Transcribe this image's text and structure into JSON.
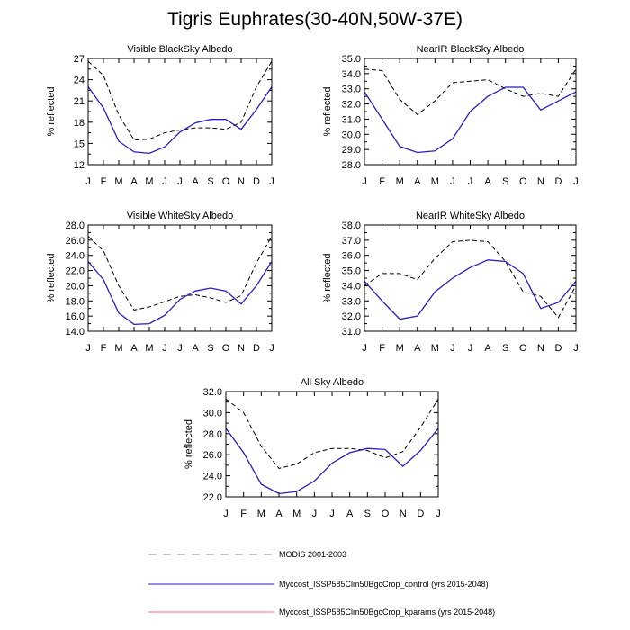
{
  "title": "Tigris Euphrates(30-40N,50W-37E)",
  "ylabel": "% reflected",
  "colors": {
    "modis": "#000000",
    "control": "#2a1fbf",
    "kparams": "#ff6a7a",
    "legend_dash": "#8a8a8a"
  },
  "legend": [
    {
      "label": "MODIS 2001-2003",
      "style": "dashed"
    },
    {
      "label": "Myccost_ISSP585Clm50BgcCrop_control (yrs 2015-2048)",
      "style": "solid-blue"
    },
    {
      "label": "Myccost_ISSP585Clm50BgcCrop_kparams (yrs 2015-2048)",
      "style": "solid-red"
    }
  ],
  "chart_data": [
    {
      "type": "line",
      "title": "Visible BlackSky Albedo",
      "ylabel": "% reflected",
      "x": [
        "J",
        "F",
        "M",
        "A",
        "M",
        "J",
        "J",
        "A",
        "S",
        "O",
        "N",
        "D",
        "J"
      ],
      "ylim": [
        12,
        27
      ],
      "yticks": [
        "12",
        "15",
        "18",
        "21",
        "24",
        "27"
      ],
      "series": [
        {
          "name": "MODIS 2001-2003",
          "values": [
            26.6,
            24.6,
            19.0,
            15.5,
            15.6,
            16.5,
            16.9,
            17.2,
            17.2,
            17.0,
            18.0,
            23.0,
            26.6
          ]
        },
        {
          "name": "Myccost_ISSP585Clm50BgcCrop_control (yrs 2015-2048)",
          "values": [
            23.0,
            20.0,
            15.3,
            13.8,
            13.6,
            14.5,
            16.6,
            17.9,
            18.4,
            18.4,
            17.0,
            19.8,
            23.0
          ]
        }
      ]
    },
    {
      "type": "line",
      "title": "NearIR BlackSky Albedo",
      "ylabel": "% reflected",
      "x": [
        "J",
        "F",
        "M",
        "A",
        "M",
        "J",
        "J",
        "A",
        "S",
        "O",
        "N",
        "D",
        "J"
      ],
      "ylim": [
        28.0,
        35.0
      ],
      "yticks": [
        "28.0",
        "29.0",
        "30.0",
        "31.0",
        "32.0",
        "33.0",
        "34.0",
        "35.0"
      ],
      "series": [
        {
          "name": "MODIS 2001-2003",
          "values": [
            34.3,
            34.2,
            32.3,
            31.3,
            32.2,
            33.4,
            33.5,
            33.6,
            33.0,
            32.5,
            32.7,
            32.5,
            34.3
          ]
        },
        {
          "name": "Myccost_ISSP585Clm50BgcCrop_control (yrs 2015-2048)",
          "values": [
            32.8,
            31.0,
            29.2,
            28.8,
            28.9,
            29.7,
            31.5,
            32.5,
            33.1,
            33.1,
            31.6,
            32.2,
            32.8
          ]
        }
      ]
    },
    {
      "type": "line",
      "title": "Visible WhiteSky Albedo",
      "ylabel": "% reflected",
      "x": [
        "J",
        "F",
        "M",
        "A",
        "M",
        "J",
        "J",
        "A",
        "S",
        "O",
        "N",
        "D",
        "J"
      ],
      "ylim": [
        14.0,
        28.0
      ],
      "yticks": [
        "14.0",
        "16.0",
        "18.0",
        "20.0",
        "22.0",
        "24.0",
        "26.0",
        "28.0"
      ],
      "series": [
        {
          "name": "MODIS 2001-2003",
          "values": [
            26.5,
            24.6,
            20.0,
            16.8,
            17.2,
            17.9,
            18.6,
            18.8,
            18.4,
            17.8,
            18.7,
            23.0,
            26.5
          ]
        },
        {
          "name": "Myccost_ISSP585Clm50BgcCrop_control (yrs 2015-2048)",
          "values": [
            23.2,
            20.8,
            16.4,
            14.9,
            15.0,
            16.1,
            18.2,
            19.3,
            19.7,
            19.3,
            17.6,
            20.0,
            23.2
          ]
        }
      ]
    },
    {
      "type": "line",
      "title": "NearIR WhiteSky Albedo",
      "ylabel": "% reflected",
      "x": [
        "J",
        "F",
        "M",
        "A",
        "M",
        "J",
        "J",
        "A",
        "S",
        "O",
        "N",
        "D",
        "J"
      ],
      "ylim": [
        31.0,
        38.0
      ],
      "yticks": [
        "31.0",
        "32.0",
        "33.0",
        "34.0",
        "35.0",
        "36.0",
        "37.0",
        "38.0"
      ],
      "series": [
        {
          "name": "MODIS 2001-2003",
          "values": [
            34.0,
            34.8,
            34.8,
            34.4,
            35.8,
            36.9,
            37.0,
            36.9,
            35.6,
            33.6,
            33.3,
            31.9,
            34.0
          ]
        },
        {
          "name": "Myccost_ISSP585Clm50BgcCrop_control (yrs 2015-2048)",
          "values": [
            34.3,
            33.0,
            31.8,
            32.0,
            33.6,
            34.5,
            35.2,
            35.7,
            35.6,
            34.8,
            32.5,
            32.9,
            34.3
          ]
        }
      ]
    },
    {
      "type": "line",
      "title": "All Sky Albedo",
      "ylabel": "% reflected",
      "x": [
        "J",
        "F",
        "M",
        "A",
        "M",
        "J",
        "J",
        "A",
        "S",
        "O",
        "N",
        "D",
        "J"
      ],
      "ylim": [
        22.0,
        32.0
      ],
      "yticks": [
        "22.0",
        "24.0",
        "26.0",
        "28.0",
        "30.0",
        "32.0"
      ],
      "series": [
        {
          "name": "MODIS 2001-2003",
          "values": [
            31.3,
            30.0,
            26.8,
            24.7,
            25.1,
            26.2,
            26.6,
            26.6,
            26.4,
            25.7,
            26.3,
            28.6,
            31.3
          ]
        },
        {
          "name": "Myccost_ISSP585Clm50BgcCrop_control (yrs 2015-2048)",
          "values": [
            28.5,
            26.2,
            23.2,
            22.3,
            22.5,
            23.5,
            25.2,
            26.2,
            26.6,
            26.5,
            24.9,
            26.4,
            28.5
          ]
        }
      ]
    }
  ]
}
